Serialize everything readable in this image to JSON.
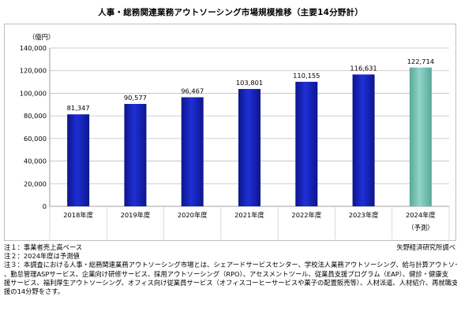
{
  "chart_data": {
    "type": "bar",
    "title": "人事・総務関連業務アウトソーシング市場規模推移（主要14分野計）",
    "ylabel": "（億円）",
    "ylim": [
      0,
      140000
    ],
    "yticks": [
      0,
      20000,
      40000,
      60000,
      80000,
      100000,
      120000,
      140000
    ],
    "ytick_labels": [
      "0",
      "20,000",
      "40,000",
      "60,000",
      "80,000",
      "100,000",
      "120,000",
      "140,000"
    ],
    "categories": [
      "2018年度",
      "2019年度",
      "2020年度",
      "2021年度",
      "2022年度",
      "2023年度",
      "2024年度"
    ],
    "category_sublabels": [
      "",
      "",
      "",
      "",
      "",
      "",
      "（予測）"
    ],
    "values": [
      81347,
      90577,
      96467,
      103801,
      110155,
      116631,
      122714
    ],
    "value_labels": [
      "81,347",
      "90,577",
      "96,467",
      "103,801",
      "110,155",
      "116,631",
      "122,714"
    ],
    "forecast": [
      false,
      false,
      false,
      false,
      false,
      false,
      true
    ],
    "colors": {
      "actual": "#1f2fd6",
      "actual_dark": "#0c168c",
      "forecast": "#8fd4c6",
      "forecast_dark": "#5aa89b",
      "grid": "#bfbfbf",
      "separator": "#d0d0d0"
    },
    "grid": true
  },
  "notes": [
    "注１：事業者売上高ベース",
    "注２：2024年度は予測値",
    "注３：本調査における人事・総務関連業務アウトソーシング市場とは、シェアードサービスセンター、学校法人業務アウトソーシング、給与計算アウトソーシング",
    "、勤怠管理ASPサービス、企業向け研修サービス、採用アウトソーシング（RPO）、アセスメントツール、従業員支援プログラム（EAP）、健診・健康支",
    "援サービス、福利厚生アウトソーシング、オフィス向け従業員サービス（オフィスコーヒーサービスや菓子の配置販売等）、人材派遣、人材紹介、再就職支",
    "援の14分野をさす。"
  ],
  "source": "矢野経済研究所調べ"
}
